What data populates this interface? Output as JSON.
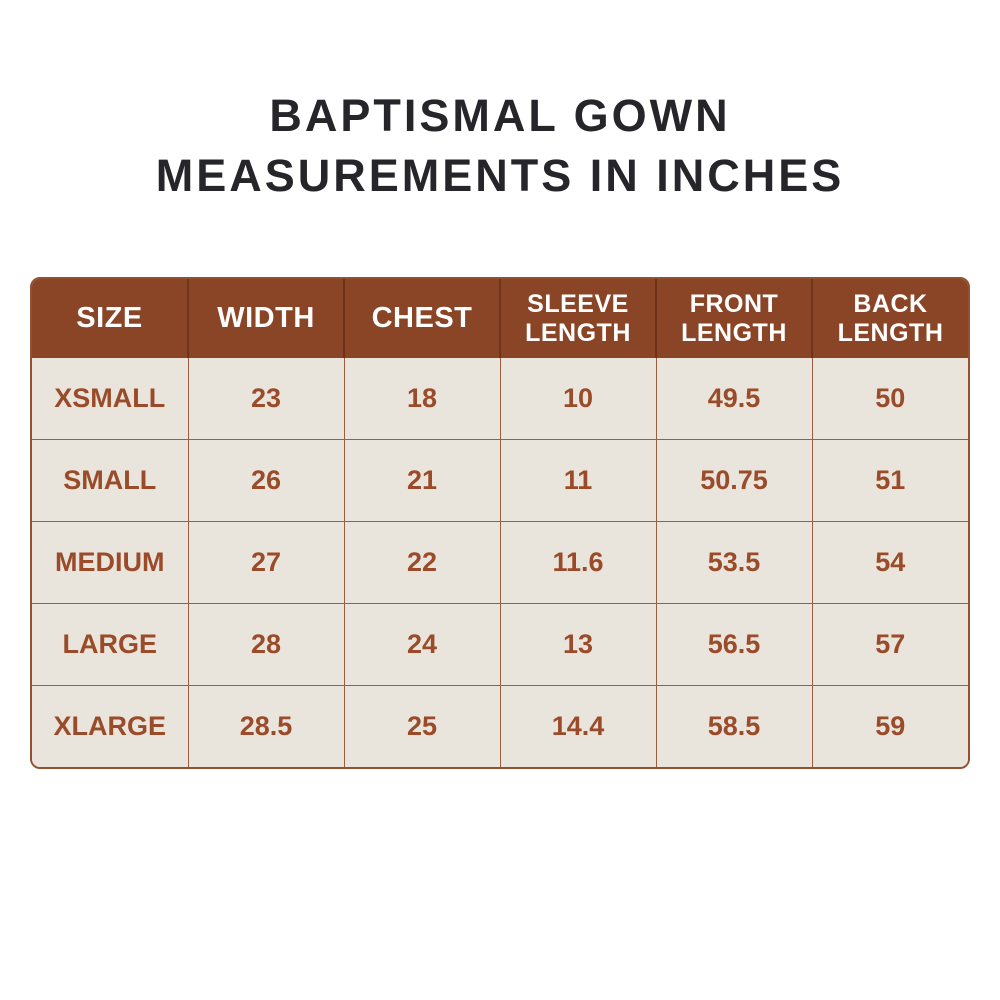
{
  "title": {
    "line1": "BAPTISMAL GOWN",
    "line2": "MEASUREMENTS IN INCHES"
  },
  "colors": {
    "page_bg": "#FFFFFF",
    "title_text": "#26262A",
    "header_bg": "#8A4426",
    "header_text": "#FFFFFF",
    "cell_bg": "#E9E5DC",
    "cell_text": "#9A4C2A",
    "border": "#9C5E3C"
  },
  "chart_data": {
    "type": "table",
    "title": "BAPTISMAL GOWN MEASUREMENTS IN INCHES",
    "units": "inches",
    "columns": [
      "SIZE",
      "WIDTH",
      "CHEST",
      "SLEEVE LENGTH",
      "FRONT LENGTH",
      "BACK LENGTH"
    ],
    "rows": [
      [
        "XSMALL",
        "23",
        "18",
        "10",
        "49.5",
        "50"
      ],
      [
        "SMALL",
        "26",
        "21",
        "11",
        "50.75",
        "51"
      ],
      [
        "MEDIUM",
        "27",
        "22",
        "11.6",
        "53.5",
        "54"
      ],
      [
        "LARGE",
        "28",
        "24",
        "13",
        "56.5",
        "57"
      ],
      [
        "XLARGE",
        "28.5",
        "25",
        "14.4",
        "58.5",
        "59"
      ]
    ]
  }
}
